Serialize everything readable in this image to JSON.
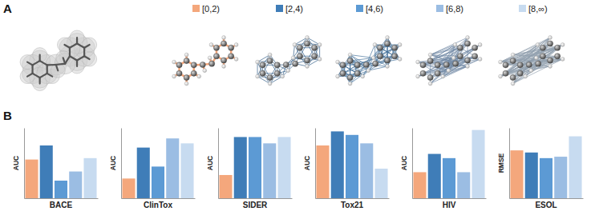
{
  "panel_labels": [
    "A",
    "B"
  ],
  "chart_data": [
    {
      "type": "bar",
      "title": "BACE",
      "y_label": "AUC",
      "categories": [
        "[0,2)",
        "[2,4)",
        "[4,6)",
        "[6,8)",
        "[8,∞)"
      ],
      "values": [
        0.55,
        0.75,
        0.25,
        0.38,
        0.57
      ],
      "colors": [
        "#f4a77c",
        "#3f7db8",
        "#5c9ad4",
        "#9bbde3",
        "#c7dbf0"
      ],
      "ylim": [
        0,
        1
      ],
      "tick_labels": false
    },
    {
      "type": "bar",
      "title": "ClinTox",
      "y_label": "AUC",
      "categories": [
        "[0,2)",
        "[2,4)",
        "[4,6)",
        "[6,8)",
        "[8,∞)"
      ],
      "values": [
        0.28,
        0.72,
        0.45,
        0.85,
        0.78
      ],
      "colors": [
        "#f4a77c",
        "#3f7db8",
        "#5c9ad4",
        "#9bbde3",
        "#c7dbf0"
      ],
      "ylim": [
        0,
        1
      ],
      "tick_labels": false
    },
    {
      "type": "bar",
      "title": "SIDER",
      "y_label": "AUC",
      "categories": [
        "[0,2)",
        "[2,4)",
        "[4,6)",
        "[6,8)",
        "[8,∞)"
      ],
      "values": [
        0.33,
        0.87,
        0.87,
        0.78,
        0.87
      ],
      "colors": [
        "#f4a77c",
        "#3f7db8",
        "#5c9ad4",
        "#9bbde3",
        "#c7dbf0"
      ],
      "ylim": [
        0,
        1
      ],
      "tick_labels": false
    },
    {
      "type": "bar",
      "title": "Tox21",
      "y_label": "AUC",
      "categories": [
        "[0,2)",
        "[2,4)",
        "[4,6)",
        "[6,8)",
        "[8,∞)"
      ],
      "values": [
        0.75,
        0.95,
        0.9,
        0.78,
        0.42
      ],
      "colors": [
        "#f4a77c",
        "#3f7db8",
        "#5c9ad4",
        "#9bbde3",
        "#c7dbf0"
      ],
      "ylim": [
        0,
        1
      ],
      "tick_labels": false
    },
    {
      "type": "bar",
      "title": "HIV",
      "y_label": "AUC",
      "categories": [
        "[0,2)",
        "[2,4)",
        "[4,6)",
        "[6,8)",
        "[8,∞)"
      ],
      "values": [
        0.37,
        0.63,
        0.57,
        0.37,
        0.97
      ],
      "colors": [
        "#f4a77c",
        "#3f7db8",
        "#5c9ad4",
        "#9bbde3",
        "#c7dbf0"
      ],
      "ylim": [
        0,
        1
      ],
      "tick_labels": false
    },
    {
      "type": "bar",
      "title": "ESOL",
      "y_label": "RMSE",
      "categories": [
        "[0,2)",
        "[2,4)",
        "[4,6)",
        "[6,8)",
        "[8,∞)"
      ],
      "values": [
        0.68,
        0.65,
        0.57,
        0.59,
        0.88
      ],
      "colors": [
        "#f4a77c",
        "#3f7db8",
        "#5c9ad4",
        "#9bbde3",
        "#c7dbf0"
      ],
      "ylim": [
        0,
        1
      ],
      "tick_labels": false
    }
  ]
}
